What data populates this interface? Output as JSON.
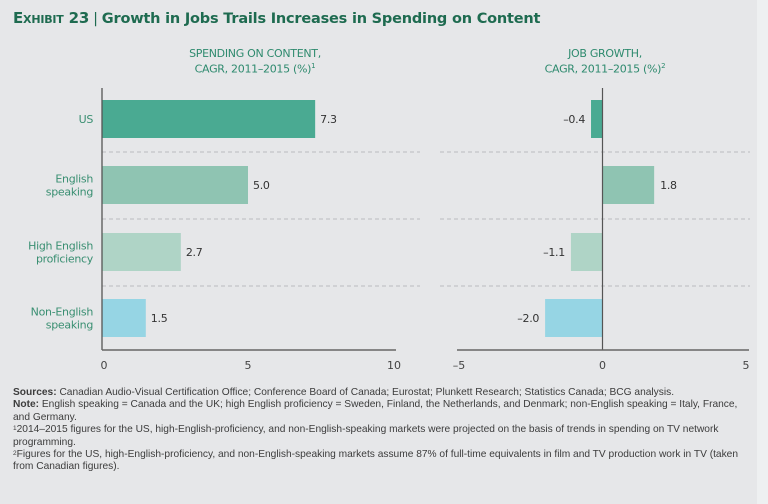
{
  "exhibit": {
    "label": "Exhibit 23",
    "separator": "|",
    "title": "Growth in Jobs Trails Increases in Spending on Content"
  },
  "colors": {
    "title": "#1e6b50",
    "us": "#4aaa92",
    "english_speaking": "#8fc4b2",
    "high_english_proficiency": "#afd4c6",
    "non_english_speaking": "#96d5e4"
  },
  "chart_data": [
    {
      "type": "bar",
      "orientation": "horizontal",
      "title_line1": "SPENDING ON CONTENT,",
      "title_line2": "CAGR, 2011–2015 (%)",
      "title_footnote": "1",
      "categories": [
        "US",
        "English speaking",
        "High English proficiency",
        "Non-English speaking"
      ],
      "category_lines": [
        [
          "US"
        ],
        [
          "English",
          "speaking"
        ],
        [
          "High English",
          "proficiency"
        ],
        [
          "Non-English",
          "speaking"
        ]
      ],
      "values": [
        7.3,
        5.0,
        2.7,
        1.5
      ],
      "value_labels": [
        "7.3",
        "5.0",
        "2.7",
        "1.5"
      ],
      "xlim": [
        0,
        10
      ],
      "ticks": [
        0,
        5,
        10
      ],
      "tick_labels": [
        "0",
        "5",
        "10"
      ],
      "grid": false,
      "separators": "dashed"
    },
    {
      "type": "bar",
      "orientation": "horizontal",
      "title_line1": "JOB GROWTH,",
      "title_line2": "CAGR, 2011–2015 (%)",
      "title_footnote": "2",
      "categories": [
        "US",
        "English speaking",
        "High English proficiency",
        "Non-English speaking"
      ],
      "values": [
        -0.4,
        1.8,
        -1.1,
        -2.0
      ],
      "value_labels": [
        "–0.4",
        "1.8",
        "–1.1",
        "–2.0"
      ],
      "xlim": [
        -5,
        5
      ],
      "ticks": [
        -5,
        0,
        5
      ],
      "tick_labels": [
        "–5",
        "0",
        "5"
      ],
      "grid": false,
      "separators": "dashed"
    }
  ],
  "notes": {
    "sources_label": "Sources:",
    "sources_text": " Canadian Audio-Visual Certification Office; Conference Board of Canada; Eurostat; Plunkett Research; Statistics Canada; BCG analysis.",
    "note_label": "Note:",
    "note_text": " English speaking = Canada and the UK; high English proficiency = Sweden, Finland, the Netherlands, and Denmark; non-English speaking = Italy, France, and Germany.",
    "fn1_mark": "1",
    "fn1_text": "2014–2015 figures for the US, high-English-proficiency, and non-English-speaking markets were projected on the basis of trends in spending on TV network programming.",
    "fn2_mark": "2",
    "fn2_text": "Figures for the US, high-English-proficiency, and non-English-speaking markets assume 87% of full-time equivalents in film and TV production work in TV (taken from Canadian figures)."
  }
}
